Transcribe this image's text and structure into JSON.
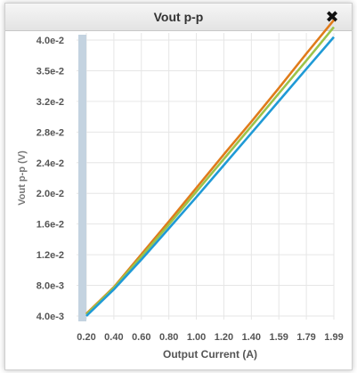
{
  "window": {
    "title": "Vout p-p",
    "close_glyph": "✖",
    "close_icon": "close-icon"
  },
  "chart_data": {
    "type": "line",
    "xlabel": "Output Current (A)",
    "ylabel": "Vout p-p (V)",
    "x_ticks": [
      "0.20",
      "0.40",
      "0.60",
      "0.80",
      "1.00",
      "1.20",
      "1.40",
      "1.59",
      "1.79",
      "1.99"
    ],
    "y_ticks": [
      "4.0e-3",
      "8.0e-3",
      "1.2e-2",
      "1.6e-2",
      "2.0e-2",
      "2.4e-2",
      "2.8e-2",
      "3.2e-2",
      "3.5e-2",
      "4.0e-2"
    ],
    "xlim": [
      0.2,
      1.99
    ],
    "ylim": [
      0.004,
      0.04
    ],
    "grid": true,
    "series": [
      {
        "color": "#e07b1a",
        "x": [
          0.2,
          0.4,
          0.6,
          0.8,
          1.0,
          1.2,
          1.4,
          1.59,
          1.79,
          1.99
        ],
        "y": [
          0.0043,
          0.0078,
          0.0121,
          0.0164,
          0.0208,
          0.0252,
          0.0295,
          0.0337,
          0.0382,
          0.0426
        ]
      },
      {
        "color": "#9bc34a",
        "x": [
          0.2,
          0.4,
          0.6,
          0.8,
          1.0,
          1.2,
          1.4,
          1.59,
          1.79,
          1.99
        ],
        "y": [
          0.0042,
          0.0077,
          0.0118,
          0.016,
          0.0203,
          0.0246,
          0.0289,
          0.033,
          0.0373,
          0.0417
        ]
      },
      {
        "color": "#1f9ad6",
        "x": [
          0.2,
          0.4,
          0.6,
          0.8,
          1.0,
          1.2,
          1.4,
          1.59,
          1.79,
          1.99
        ],
        "y": [
          0.004,
          0.0075,
          0.0114,
          0.0155,
          0.0196,
          0.0238,
          0.028,
          0.032,
          0.0362,
          0.0404
        ]
      }
    ]
  }
}
